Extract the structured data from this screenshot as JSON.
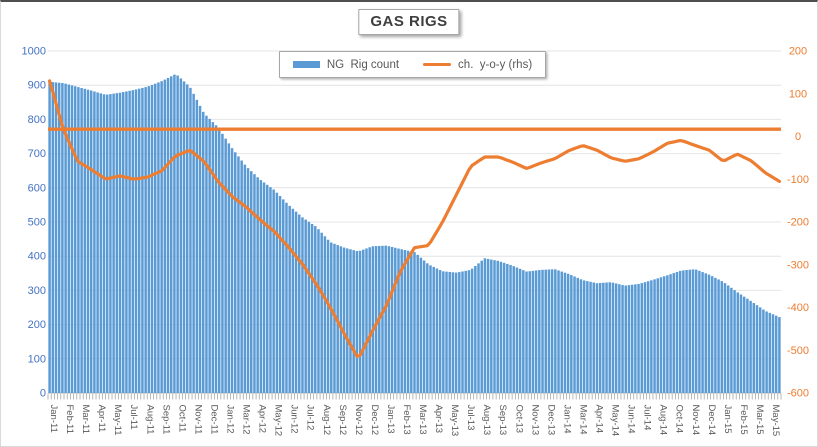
{
  "title": "GAS RIGS",
  "legend": [
    {
      "label": "NG  Rig count",
      "type": "bar",
      "color": "#5B9BD5"
    },
    {
      "label": "ch.  y-o-y (rhs)",
      "type": "line",
      "color": "#ED7D31"
    }
  ],
  "left_axis": {
    "min": 0,
    "max": 1000,
    "step": 100,
    "color": "#4472C4",
    "labels": [
      "1000",
      "900",
      "800",
      "700",
      "600",
      "500",
      "400",
      "300",
      "200",
      "100",
      "0"
    ]
  },
  "right_axis": {
    "min": -600,
    "max": 200,
    "step": 100,
    "color": "#ED7D31",
    "labels": [
      "200",
      "100",
      "0",
      "-100",
      "-200",
      "-300",
      "-400",
      "-500",
      "-600"
    ]
  },
  "x_axis": {
    "color": "#595959",
    "labels": [
      "Jan-11",
      "Feb-11",
      "Mar-11",
      "Apr-11",
      "May-11",
      "Jul-11",
      "Aug-11",
      "Sep-11",
      "Oct-11",
      "Nov-11",
      "Dec-11",
      "Jan-12",
      "Mar-12",
      "Apr-12",
      "May-12",
      "Jun-12",
      "Jul-12",
      "Aug-12",
      "Sep-12",
      "Nov-12",
      "Dec-12",
      "Jan-13",
      "Feb-13",
      "Mar-13",
      "Apr-13",
      "May-13",
      "Jul-13",
      "Aug-13",
      "Sep-13",
      "Oct-13",
      "Nov-13",
      "Dec-13",
      "Jan-14",
      "Mar-14",
      "Apr-14",
      "May-14",
      "Jun-14",
      "Jul-14",
      "Aug-14",
      "Oct-14",
      "Nov-14",
      "Dec-14",
      "Jan-15",
      "Feb-15",
      "Mar-15",
      "May-15"
    ]
  },
  "colors": {
    "bar": "#5B9BD5",
    "line": "#ED7D31",
    "left_labels": "#4472C4",
    "right_labels": "#ED7D31",
    "x_labels": "#595959",
    "gridline": "#E4E4E4",
    "axis_line": "#BFBFBF",
    "tick": "#999999"
  },
  "chart_data": {
    "type": "bar+line",
    "title": "GAS RIGS",
    "x_is_weekly": true,
    "months": [
      "Jan-11",
      "Feb-11",
      "Mar-11",
      "Apr-11",
      "May-11",
      "Jun-11",
      "Jul-11",
      "Aug-11",
      "Sep-11",
      "Oct-11",
      "Nov-11",
      "Dec-11",
      "Jan-12",
      "Feb-12",
      "Mar-12",
      "Apr-12",
      "May-12",
      "Jun-12",
      "Jul-12",
      "Aug-12",
      "Sep-12",
      "Oct-12",
      "Nov-12",
      "Dec-12",
      "Jan-13",
      "Feb-13",
      "Mar-13",
      "Apr-13",
      "May-13",
      "Jun-13",
      "Jul-13",
      "Aug-13",
      "Sep-13",
      "Oct-13",
      "Nov-13",
      "Dec-13",
      "Jan-14",
      "Feb-14",
      "Mar-14",
      "Apr-14",
      "May-14",
      "Jun-14",
      "Jul-14",
      "Aug-14",
      "Sep-14",
      "Oct-14",
      "Nov-14",
      "Dec-14",
      "Jan-15",
      "Feb-15",
      "Mar-15",
      "Apr-15",
      "May-15"
    ],
    "series": [
      {
        "name": "NG  Rig count",
        "type": "bar",
        "axis": "left",
        "color": "#5B9BD5",
        "values": [
          910,
          906,
          895,
          884,
          872,
          878,
          886,
          896,
          912,
          933,
          895,
          818,
          777,
          716,
          663,
          624,
          594,
          551,
          514,
          486,
          441,
          425,
          414,
          429,
          431,
          421,
          412,
          376,
          356,
          352,
          360,
          394,
          386,
          372,
          355,
          360,
          362,
          348,
          330,
          321,
          324,
          314,
          319,
          331,
          344,
          358,
          362,
          346,
          325,
          295,
          268,
          240,
          222
        ]
      },
      {
        "name": "ch.  y-o-y (rhs)",
        "type": "line",
        "axis": "right",
        "color": "#ED7D31",
        "values": [
          130,
          15,
          -58,
          -78,
          -100,
          -92,
          -100,
          -95,
          -80,
          -45,
          -32,
          -58,
          -105,
          -140,
          -165,
          -195,
          -222,
          -258,
          -298,
          -345,
          -400,
          -462,
          -520,
          -455,
          -395,
          -315,
          -260,
          -255,
          -200,
          -135,
          -70,
          -48,
          -48,
          -60,
          -75,
          -62,
          -52,
          -33,
          -21,
          -32,
          -50,
          -58,
          -52,
          -36,
          -16,
          -9,
          -21,
          -32,
          -58,
          -41,
          -57,
          -85,
          -105
        ]
      }
    ],
    "annotations": [
      {
        "type": "hline",
        "axis": "right",
        "value": 17,
        "color": "#ED7D31"
      }
    ],
    "left_ylim": [
      0,
      1000
    ],
    "right_ylim": [
      -600,
      200
    ],
    "grid": true,
    "legend_position": "top-center"
  }
}
